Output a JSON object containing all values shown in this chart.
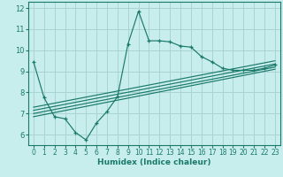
{
  "xlabel": "Humidex (Indice chaleur)",
  "background_color": "#c8eded",
  "grid_color": "#aad4d4",
  "line_color": "#1a7a6a",
  "xlim": [
    -0.5,
    23.5
  ],
  "ylim": [
    5.5,
    12.3
  ],
  "xticks": [
    0,
    1,
    2,
    3,
    4,
    5,
    6,
    7,
    8,
    9,
    10,
    11,
    12,
    13,
    14,
    15,
    16,
    17,
    18,
    19,
    20,
    21,
    22,
    23
  ],
  "yticks": [
    6,
    7,
    8,
    9,
    10,
    11,
    12
  ],
  "main_series_x": [
    0,
    1,
    2,
    3,
    4,
    5,
    6,
    7,
    8,
    9,
    10,
    11,
    12,
    13,
    14,
    15,
    16,
    17,
    18,
    19,
    20,
    21,
    22,
    23
  ],
  "main_series_y": [
    9.45,
    7.75,
    6.85,
    6.75,
    6.1,
    5.75,
    6.55,
    7.1,
    7.8,
    10.3,
    11.85,
    10.45,
    10.45,
    10.4,
    10.2,
    10.15,
    9.7,
    9.45,
    9.15,
    9.05,
    9.05,
    9.05,
    9.15,
    9.3
  ],
  "reg_lines": [
    {
      "x": [
        0,
        23
      ],
      "y": [
        6.85,
        9.1
      ]
    },
    {
      "x": [
        0,
        23
      ],
      "y": [
        7.0,
        9.2
      ]
    },
    {
      "x": [
        0,
        23
      ],
      "y": [
        7.15,
        9.35
      ]
    },
    {
      "x": [
        0,
        23
      ],
      "y": [
        7.3,
        9.5
      ]
    }
  ],
  "tick_fontsize": 5.5,
  "xlabel_fontsize": 6.5
}
